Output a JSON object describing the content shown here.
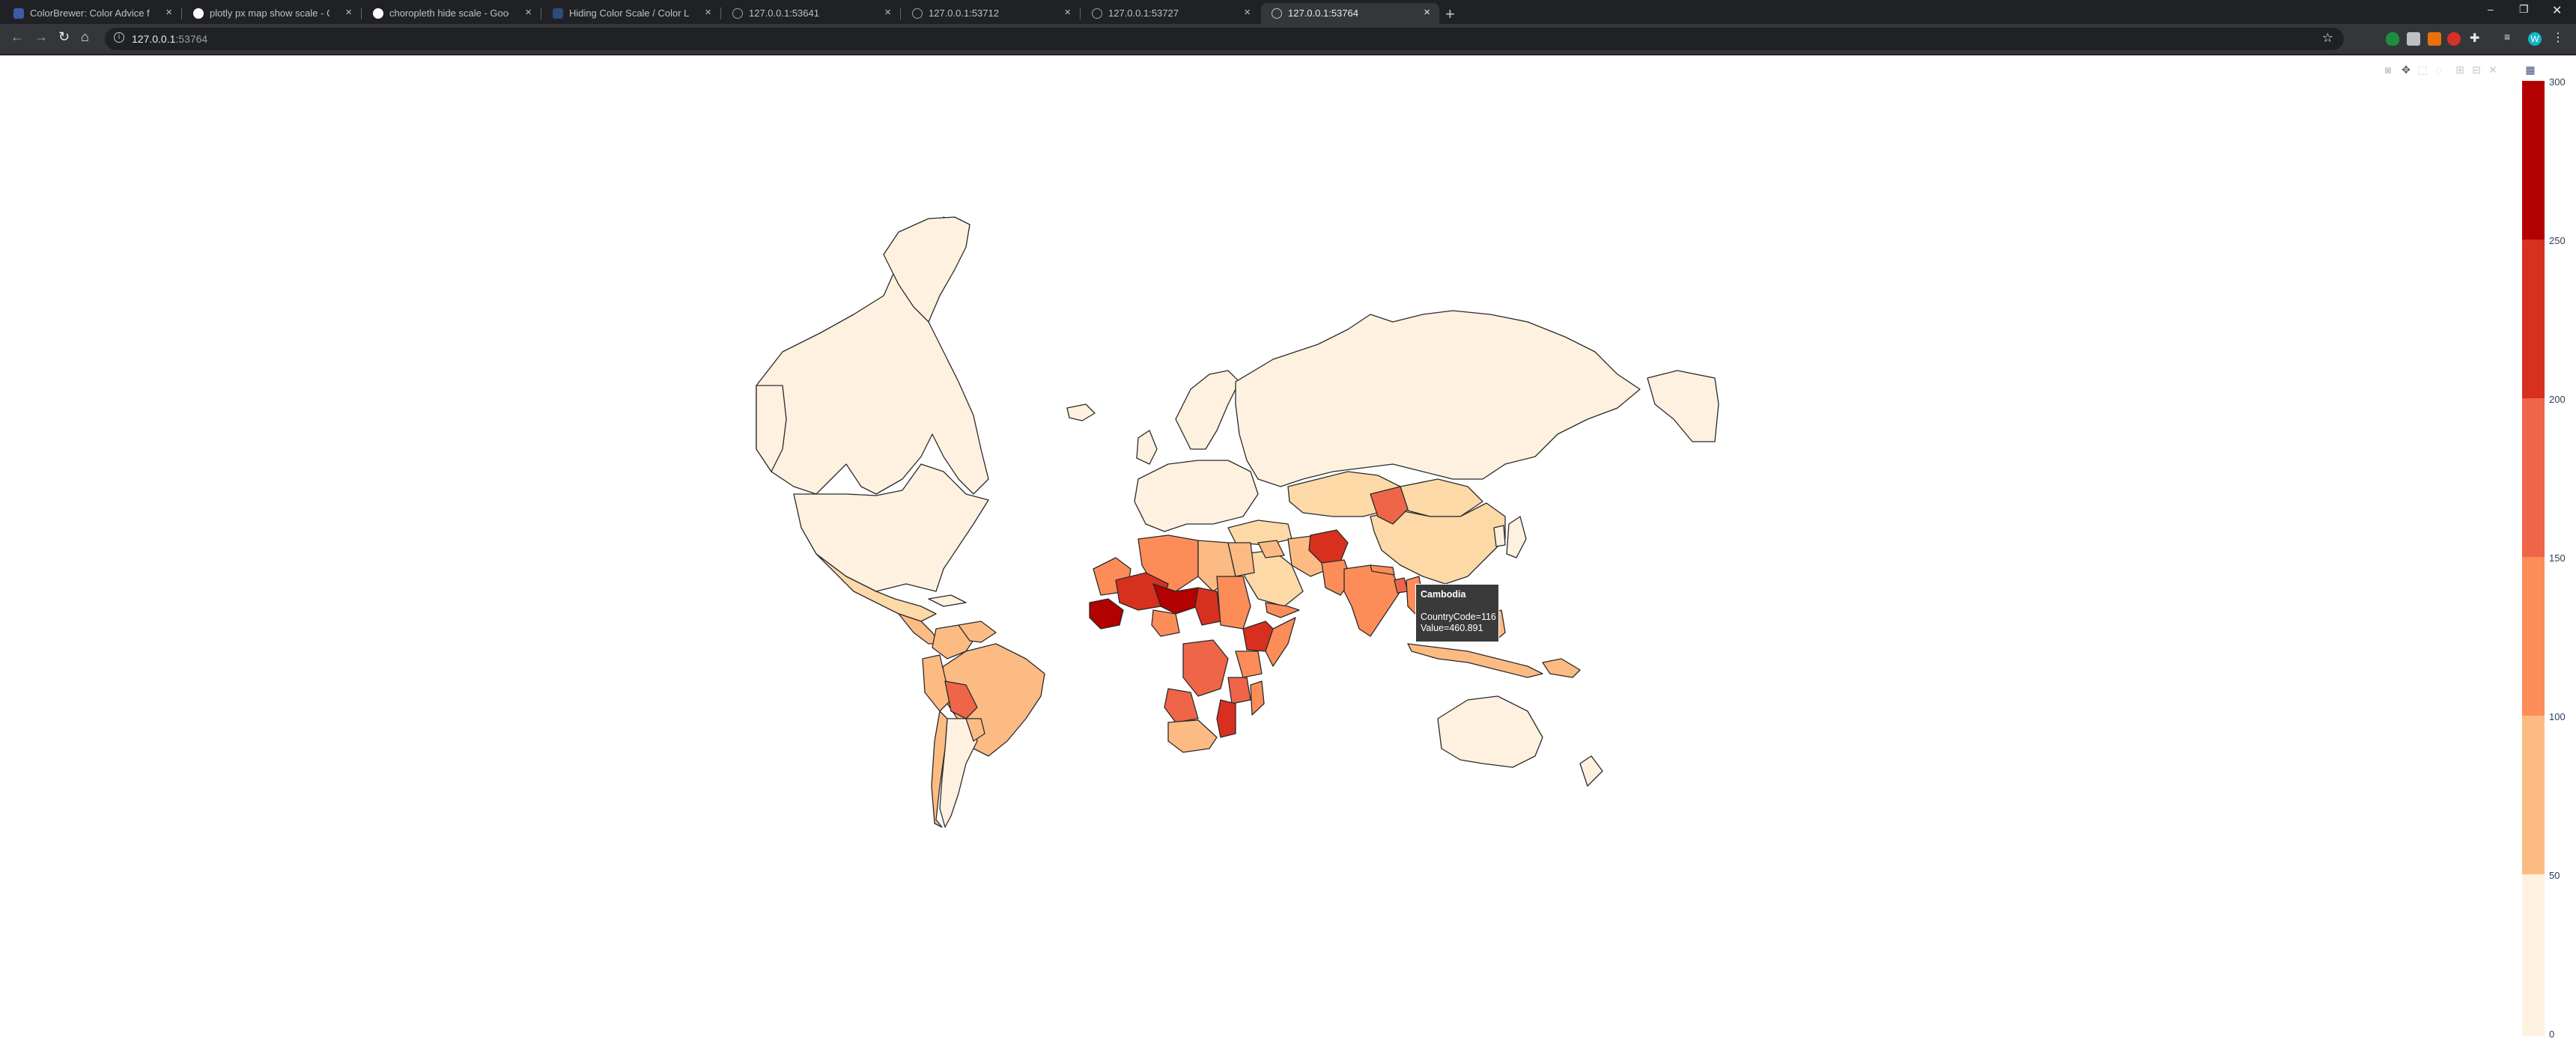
{
  "browser": {
    "tabs": [
      {
        "title": "ColorBrewer: Color Advice for M...",
        "favicon_color": "#3b5ba5"
      },
      {
        "title": "plotly px map show scale - Goog...",
        "favicon_color": "#ffffff"
      },
      {
        "title": "choropleth hide scale - Google S...",
        "favicon_color": "#ffffff"
      },
      {
        "title": "Hiding Color Scale / Color Legen...",
        "favicon_color": "#2e4a7f"
      },
      {
        "title": "127.0.0.1:53641",
        "favicon_color": "#5f6368"
      },
      {
        "title": "127.0.0.1:53712",
        "favicon_color": "#5f6368"
      },
      {
        "title": "127.0.0.1:53727",
        "favicon_color": "#5f6368"
      },
      {
        "title": "127.0.0.1:53764",
        "favicon_color": "#5f6368",
        "active": true
      }
    ],
    "url_host": "127.0.0.1",
    "url_port": ":53764",
    "profile_initial": "W"
  },
  "colorbar": {
    "ticks": [
      "0",
      "50",
      "100",
      "150",
      "200",
      "250",
      "300"
    ],
    "range": [
      0,
      300
    ],
    "colors": [
      "#fff1e0",
      "#fdd9a8",
      "#fdbb84",
      "#fc8d59",
      "#ef6548",
      "#d7301f",
      "#b30000"
    ]
  },
  "tooltip": {
    "country": "Cambodia",
    "code_line": "CountryCode=116",
    "value_line": "Value=460.891"
  }
}
